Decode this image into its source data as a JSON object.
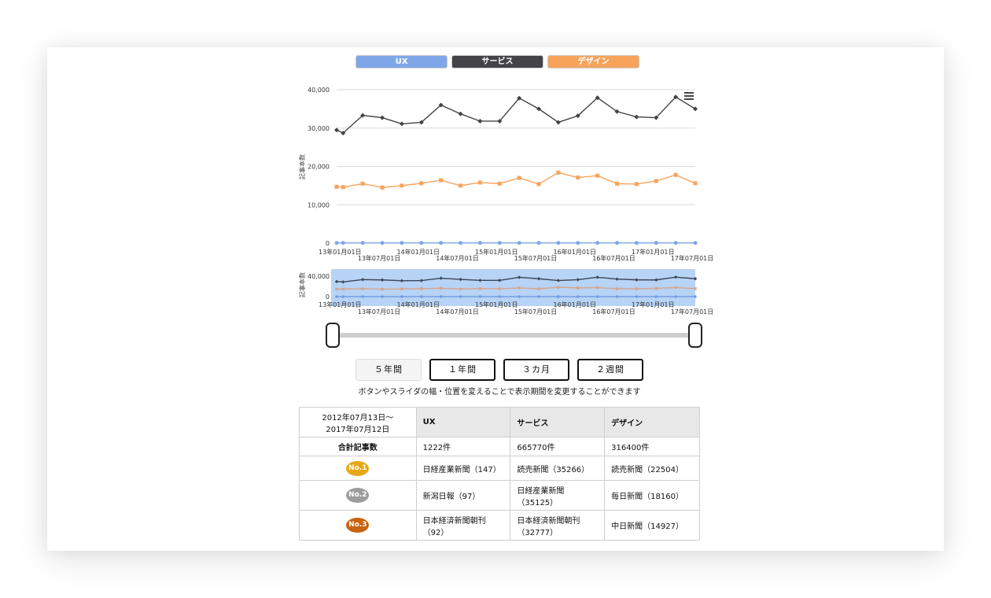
{
  "legend": [
    {
      "label": "UX",
      "color": "#7fa7e8"
    },
    {
      "label": "サービス",
      "color": "#434348"
    },
    {
      "label": "デザイン",
      "color": "#f7a35c"
    }
  ],
  "chart_data": {
    "type": "line",
    "ylabel": "記事本数",
    "ylim": [
      0,
      40000
    ],
    "yticks": [
      "0",
      "10,000",
      "20,000",
      "30,000",
      "40,000"
    ],
    "x": [
      "2012-12",
      "2013-01",
      "2013-04",
      "2013-07",
      "2013-10",
      "2014-01",
      "2014-04",
      "2014-07",
      "2014-10",
      "2015-01",
      "2015-04",
      "2015-07",
      "2015-10",
      "2016-01",
      "2016-04",
      "2016-07",
      "2016-10",
      "2017-01",
      "2017-04",
      "2017-07"
    ],
    "xticks_top": [
      "13年01月01日",
      "14年01月01日",
      "15年01月01日",
      "16年01月01日",
      "17年01月01日"
    ],
    "xticks_bottom": [
      "13年07月01日",
      "14年07月01日",
      "15年07月01日",
      "16年07月01日",
      "17年07月01日"
    ],
    "series": [
      {
        "name": "サービス",
        "color": "#434348",
        "marker": "diamond",
        "values": [
          29500,
          28700,
          33300,
          32700,
          31100,
          31500,
          36000,
          33700,
          31800,
          31800,
          37800,
          35000,
          31500,
          33200,
          37900,
          34300,
          32900,
          32700,
          38100,
          35000
        ]
      },
      {
        "name": "デザイン",
        "color": "#f7a35c",
        "marker": "square",
        "values": [
          14700,
          14600,
          15500,
          14500,
          15000,
          15600,
          16400,
          15000,
          15800,
          15500,
          17000,
          15400,
          18400,
          17100,
          17600,
          15500,
          15400,
          16200,
          17800,
          15600
        ]
      },
      {
        "name": "UX",
        "color": "#7fa7e8",
        "marker": "circle",
        "values": [
          61,
          61,
          61,
          61,
          61,
          61,
          61,
          61,
          61,
          61,
          61,
          61,
          61,
          61,
          61,
          61,
          61,
          61,
          61,
          61
        ]
      }
    ],
    "navigator": {
      "yticks": [
        "40,000",
        "0"
      ]
    },
    "menu_icon": "hamburger-icon"
  },
  "range_buttons": [
    {
      "label": "５年間",
      "active": true
    },
    {
      "label": "１年間",
      "active": false
    },
    {
      "label": "３カ月",
      "active": false
    },
    {
      "label": "２週間",
      "active": false
    }
  ],
  "hint": "ボタンやスライダの幅・位置を変えることで表示期間を変更することができます",
  "table": {
    "period": "2012年07月13日～\n2017年07月12日",
    "headers": [
      "UX",
      "サービス",
      "デザイン"
    ],
    "total_label": "合計記事数",
    "totals": [
      "1222件",
      "665770件",
      "316400件"
    ],
    "ranks": [
      {
        "badge": "No.1",
        "color": "#e6a817",
        "cells": [
          "日経産業新聞（147）",
          "読売新聞（35266）",
          "読売新聞（22504）"
        ]
      },
      {
        "badge": "No.2",
        "color": "#9d9d9d",
        "cells": [
          "新潟日報（97）",
          "日経産業新聞\n（35125）",
          "毎日新聞（18160）"
        ]
      },
      {
        "badge": "No.3",
        "color": "#c8630f",
        "cells": [
          "日本経済新聞朝刊\n（92）",
          "日本経済新聞朝刊\n（32777）",
          "中日新聞（14927）"
        ]
      }
    ]
  }
}
